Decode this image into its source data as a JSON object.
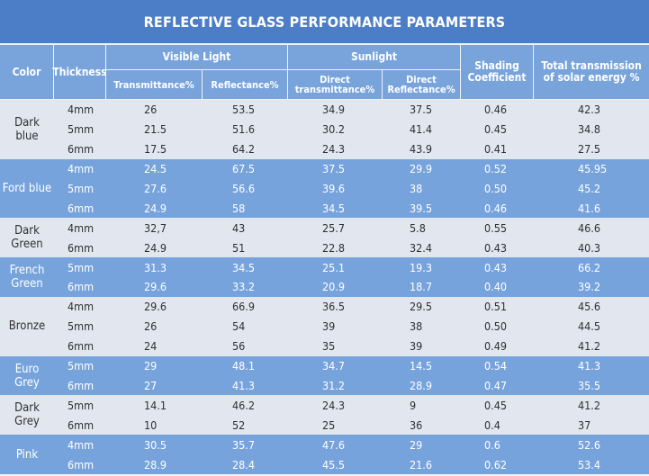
{
  "header": {
    "title": "REFLECTIVE GLASS PERFORMANCE PARAMETERS",
    "columns": {
      "color": "Color",
      "thickness": "Thickness",
      "visible": "Visible Light",
      "sunlight": "Sunlight",
      "transmittance": "Transmittance%",
      "reflectance": "Reflectance%",
      "direct_transmittance": "Direct transmittance%",
      "direct_reflectance": "Direct Reflectance%",
      "shading": "Shading Coefficient",
      "total": "Total transmission of solar energy %"
    }
  },
  "groups": [
    {
      "color": "Dark blue",
      "rows": [
        [
          "4mm",
          "26",
          "53.5",
          "34.9",
          "37.5",
          "0.46",
          "42.3"
        ],
        [
          "5mm",
          "21.5",
          "51.6",
          "30.2",
          "41.4",
          "0.45",
          "34.8"
        ],
        [
          "6mm",
          "17.5",
          "64.2",
          "24.3",
          "43.9",
          "0.41",
          "27.5"
        ]
      ]
    },
    {
      "color": "Ford blue",
      "rows": [
        [
          "4mm",
          "24.5",
          "67.5",
          "37.5",
          "29.9",
          "0.52",
          "45.95"
        ],
        [
          "5mm",
          "27.6",
          "56.6",
          "39.6",
          "38",
          "0.50",
          "45.2"
        ],
        [
          "6mm",
          "24.9",
          "58",
          "34.5",
          "39.5",
          "0.46",
          "41.6"
        ]
      ]
    },
    {
      "color": "Dark Green",
      "rows": [
        [
          "4mm",
          "32,7",
          "43",
          "25.7",
          "5.8",
          "0.55",
          "46.6"
        ],
        [
          "6mm",
          "24.9",
          "51",
          "22.8",
          "32.4",
          "0.43",
          "40.3"
        ]
      ]
    },
    {
      "color": "French Green",
      "rows": [
        [
          "5mm",
          "31.3",
          "34.5",
          "25.1",
          "19.3",
          "0.43",
          "66.2"
        ],
        [
          "6mm",
          "29.6",
          "33.2",
          "20.9",
          "18.7",
          "0.40",
          "39.2"
        ]
      ]
    },
    {
      "color": "Bronze",
      "rows": [
        [
          "4mm",
          "29.6",
          "66.9",
          "36.5",
          "29.5",
          "0.51",
          "45.6"
        ],
        [
          "5mm",
          "26",
          "54",
          "39",
          "38",
          "0.50",
          "44.5"
        ],
        [
          "6mm",
          "24",
          "56",
          "35",
          "39",
          "0.49",
          "41.2"
        ]
      ]
    },
    {
      "color": "Euro Grey",
      "rows": [
        [
          "5mm",
          "29",
          "48.1",
          "34.7",
          "14.5",
          "0.54",
          "41.3"
        ],
        [
          "6mm",
          "27",
          "41.3",
          "31.2",
          "28.9",
          "0.47",
          "35.5"
        ]
      ]
    },
    {
      "color": "Dark Grey",
      "rows": [
        [
          "5mm",
          "14.1",
          "46.2",
          "24.3",
          "9",
          "0.45",
          "41.2"
        ],
        [
          "6mm",
          "10",
          "52",
          "25",
          "36",
          "0.4",
          "37"
        ]
      ]
    },
    {
      "color": "Pink",
      "rows": [
        [
          "4mm",
          "30.5",
          "35.7",
          "47.6",
          "29",
          "0.6",
          "52.6"
        ],
        [
          "6mm",
          "28.9",
          "28.4",
          "45.5",
          "21.6",
          "0.62",
          "53.4"
        ]
      ]
    }
  ]
}
